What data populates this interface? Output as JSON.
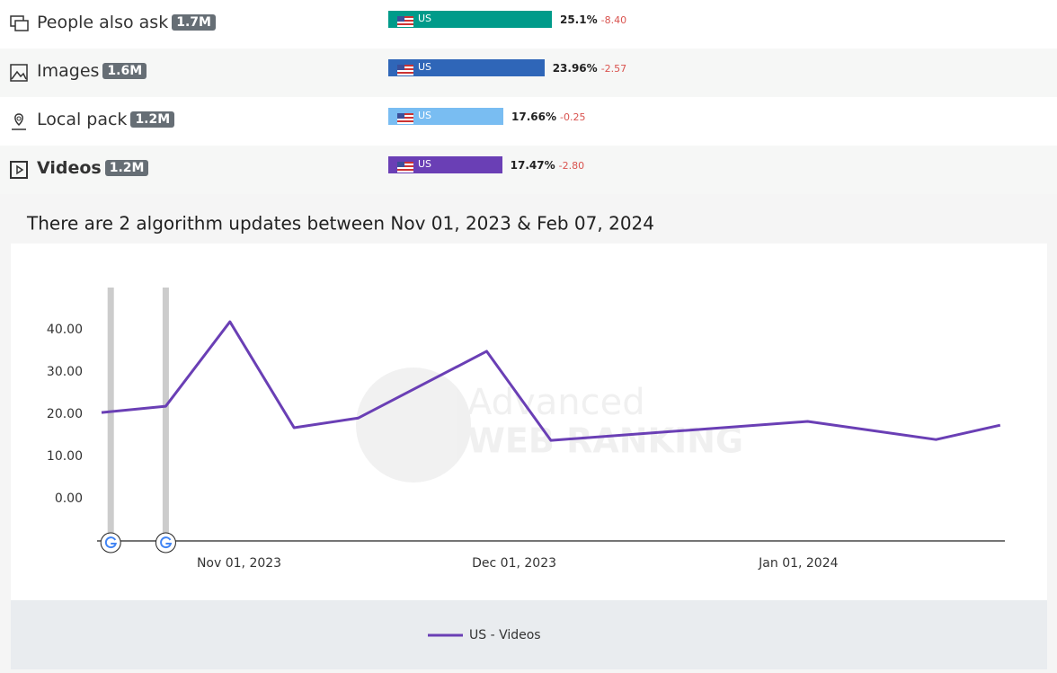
{
  "rows": [
    {
      "label": "People also ask",
      "count": "1.7M",
      "country": "US",
      "share": 25.1,
      "share_label": "25.1%",
      "change": "-8.40",
      "color": "#009b8a",
      "bold": false
    },
    {
      "label": "Images",
      "count": "1.6M",
      "country": "US",
      "share": 23.96,
      "share_label": "23.96%",
      "change": "-2.57",
      "color": "#2f66b8",
      "bold": false
    },
    {
      "label": "Local pack",
      "count": "1.2M",
      "country": "US",
      "share": 17.66,
      "share_label": "17.66%",
      "change": "-0.25",
      "color": "#79bdf2",
      "bold": false
    },
    {
      "label": "Videos",
      "count": "1.2M",
      "country": "US",
      "share": 17.47,
      "share_label": "17.47%",
      "change": "-2.80",
      "color": "#6a3fb5",
      "bold": true
    }
  ],
  "updates_title": "There are 2 algorithm updates between Nov 01, 2023 & Feb 07, 2024",
  "watermark": [
    "Advanced",
    "WEB RANKING"
  ],
  "chart_data": {
    "type": "line",
    "x": [
      "2023-10-17",
      "2023-10-24",
      "2023-10-31",
      "2023-11-07",
      "2023-11-14",
      "2023-11-28",
      "2023-12-05",
      "2024-01-02",
      "2024-01-16",
      "2024-01-23"
    ],
    "series": [
      {
        "name": "US - Videos",
        "color": "#6a3fb5",
        "values": [
          20.4,
          21.9,
          41.9,
          16.8,
          19.1,
          34.9,
          13.8,
          18.3,
          14.0,
          17.4
        ]
      }
    ],
    "algorithm_updates": [
      "2023-10-18",
      "2023-10-24"
    ],
    "xlim": [
      "2023-10-17",
      "2024-01-24"
    ],
    "xticks": [
      {
        "value": "2023-11-01",
        "label": "Nov 01, 2023"
      },
      {
        "value": "2023-12-01",
        "label": "Dec 01, 2023"
      },
      {
        "value": "2024-01-01",
        "label": "Jan 01, 2024"
      }
    ],
    "ylim": [
      -10,
      50
    ],
    "yticks": [
      {
        "value": 0,
        "label": "0.00"
      },
      {
        "value": 10,
        "label": "10.00"
      },
      {
        "value": 20,
        "label": "20.00"
      },
      {
        "value": 30,
        "label": "30.00"
      },
      {
        "value": 40,
        "label": "40.00"
      }
    ],
    "grid": false
  }
}
